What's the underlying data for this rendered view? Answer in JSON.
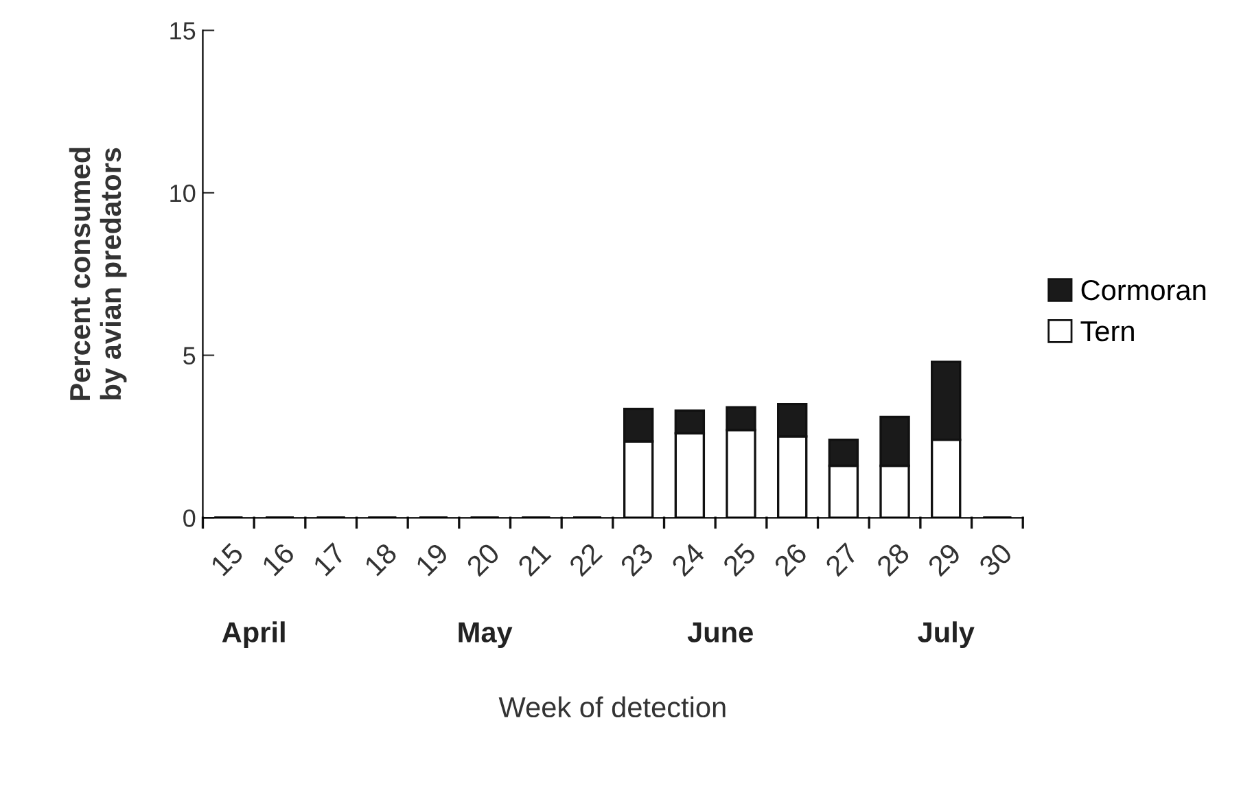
{
  "chart_data": {
    "type": "bar",
    "stacked": true,
    "xlabel": "Week of detection",
    "ylabel": "Percent consumed\nby avian predators",
    "categories": [
      "15",
      "16",
      "17",
      "18",
      "19",
      "20",
      "21",
      "22",
      "23",
      "24",
      "25",
      "26",
      "27",
      "28",
      "29",
      "30"
    ],
    "series": [
      {
        "name": "Tern",
        "color": "#ffffff",
        "values": [
          0,
          0,
          0,
          0,
          0,
          0,
          0,
          0,
          2.35,
          2.6,
          2.7,
          2.5,
          1.6,
          1.6,
          2.4,
          0
        ]
      },
      {
        "name": "Cormoran",
        "color": "#1a1a1a",
        "values": [
          0,
          0,
          0,
          0,
          0,
          0,
          0,
          0,
          1.0,
          0.7,
          0.7,
          1.0,
          0.8,
          1.5,
          2.4,
          0
        ]
      }
    ],
    "ylim": [
      0,
      15
    ],
    "yticks": [
      0,
      5,
      10,
      15
    ],
    "grid": false,
    "legend": "right",
    "annotations": [
      "April",
      "May",
      "June",
      "July"
    ]
  }
}
